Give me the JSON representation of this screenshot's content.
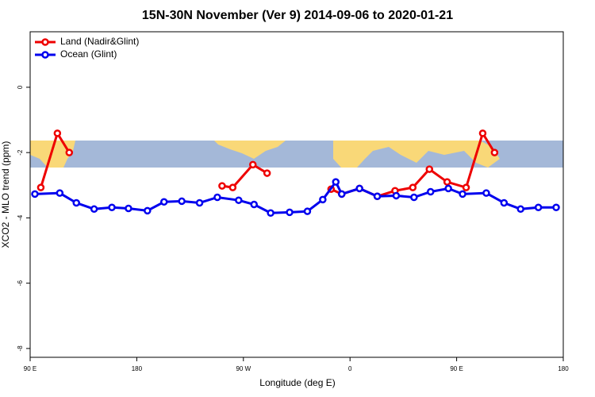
{
  "chart_data": {
    "type": "line",
    "title": "15N-30N November (Ver 9)   2014-09-06 to 2020-01-21",
    "x_label": "Longitude (deg E)",
    "y_label": "XCO2 - MLO trend (ppm)",
    "xlim": [
      90,
      540
    ],
    "xticks": [
      {
        "value": 90,
        "label": "90 E"
      },
      180,
      {
        "value": 270,
        "label": "90 W"
      },
      {
        "value": 360,
        "label": "0"
      },
      {
        "value": 450,
        "label": "90 E"
      },
      {
        "value": 540,
        "label": "180"
      }
    ],
    "ylim": [
      -8.27,
      1.7
    ],
    "yticks": [
      0,
      -2,
      -4,
      -6,
      -8
    ],
    "legend": "top-left",
    "series": [
      {
        "name": "Land (Nadir&Glint)",
        "color": "#ee0000",
        "x": [
          99,
          113,
          123,
          null,
          252,
          261,
          278,
          290,
          null,
          344,
          353,
          368,
          383,
          398,
          413,
          427,
          442,
          458,
          472,
          482
        ],
        "values": [
          -3.07,
          -1.41,
          -2.0,
          null,
          -3.02,
          -3.07,
          -2.37,
          -2.63,
          null,
          -3.12,
          -3.27,
          -3.1,
          -3.34,
          -3.17,
          -3.07,
          -2.51,
          -2.9,
          -3.07,
          -1.41,
          -2.0
        ]
      },
      {
        "name": "Ocean (Glint)",
        "color": "#0000ee",
        "x": [
          94,
          115,
          129,
          144,
          159,
          173,
          189,
          203,
          218,
          233,
          248,
          266,
          279,
          293,
          309,
          324,
          337,
          348,
          353,
          368,
          383,
          399,
          414,
          428,
          443,
          455,
          475,
          490,
          504,
          519,
          534
        ],
        "values": [
          -3.27,
          -3.24,
          -3.54,
          -3.73,
          -3.68,
          -3.71,
          -3.78,
          -3.51,
          -3.49,
          -3.54,
          -3.37,
          -3.46,
          -3.59,
          -3.85,
          -3.83,
          -3.8,
          -3.44,
          -2.9,
          -3.27,
          -3.1,
          -3.34,
          -3.32,
          -3.37,
          -3.2,
          -3.1,
          -3.27,
          -3.24,
          -3.54,
          -3.73,
          -3.68,
          -3.68
        ]
      }
    ]
  }
}
